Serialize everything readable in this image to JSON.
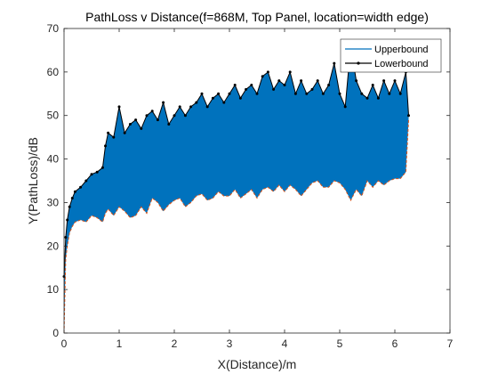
{
  "chart_data": {
    "type": "area",
    "title": "PathLoss v Distance(f=868M, Top Panel, location=width edge)",
    "xlabel": "X(Distance)/m",
    "ylabel": "Y(PathLoss)/dB",
    "xlim": [
      0,
      7
    ],
    "ylim": [
      0,
      70
    ],
    "xticks": [
      0,
      1,
      2,
      3,
      4,
      5,
      6,
      7
    ],
    "yticks": [
      0,
      10,
      20,
      30,
      40,
      50,
      60,
      70
    ],
    "grid": false,
    "legend_position": "top-right",
    "series": [
      {
        "name": "Upperbound",
        "color": "#0072BD",
        "x": [
          0.0,
          0.03,
          0.06,
          0.1,
          0.15,
          0.2,
          0.3,
          0.4,
          0.5,
          0.6,
          0.7,
          0.75,
          0.8,
          0.9,
          1.0,
          1.1,
          1.2,
          1.3,
          1.4,
          1.5,
          1.6,
          1.7,
          1.8,
          1.9,
          2.0,
          2.1,
          2.2,
          2.3,
          2.4,
          2.5,
          2.6,
          2.7,
          2.8,
          2.9,
          3.0,
          3.1,
          3.2,
          3.3,
          3.4,
          3.5,
          3.6,
          3.7,
          3.8,
          3.9,
          4.0,
          4.1,
          4.2,
          4.3,
          4.4,
          4.5,
          4.6,
          4.7,
          4.8,
          4.9,
          5.0,
          5.1,
          5.2,
          5.3,
          5.4,
          5.5,
          5.6,
          5.7,
          5.8,
          5.9,
          6.0,
          6.1,
          6.2,
          6.25
        ],
        "values": [
          13,
          22,
          26,
          29,
          31,
          32.5,
          33.5,
          35,
          36.5,
          37,
          38,
          43,
          46,
          45,
          52,
          46,
          48,
          49,
          47,
          50,
          51,
          49,
          53,
          48,
          50,
          52,
          50,
          52,
          53,
          55,
          52,
          54,
          55,
          53,
          55,
          57,
          54,
          56,
          57,
          55,
          59,
          60,
          56,
          58,
          57,
          60,
          55,
          58,
          55,
          56,
          58,
          55,
          57,
          62,
          55,
          52,
          66,
          58,
          55,
          54,
          57,
          54,
          58,
          55,
          58,
          55,
          60,
          50
        ]
      },
      {
        "name": "Lowerbound",
        "color": "#000000",
        "x": [
          0.0,
          0.03,
          0.06,
          0.1,
          0.15,
          0.2,
          0.3,
          0.4,
          0.5,
          0.6,
          0.7,
          0.75,
          0.8,
          0.9,
          1.0,
          1.1,
          1.2,
          1.3,
          1.4,
          1.5,
          1.6,
          1.7,
          1.8,
          1.9,
          2.0,
          2.1,
          2.2,
          2.3,
          2.4,
          2.5,
          2.6,
          2.7,
          2.8,
          2.9,
          3.0,
          3.1,
          3.2,
          3.3,
          3.4,
          3.5,
          3.6,
          3.7,
          3.8,
          3.9,
          4.0,
          4.1,
          4.2,
          4.3,
          4.4,
          4.5,
          4.6,
          4.7,
          4.8,
          4.9,
          5.0,
          5.1,
          5.2,
          5.3,
          5.4,
          5.5,
          5.6,
          5.7,
          5.8,
          5.9,
          6.0,
          6.1,
          6.2,
          6.25
        ],
        "values": [
          0,
          17,
          20,
          23,
          24.5,
          25.5,
          26,
          25.5,
          27,
          26.5,
          25.5,
          27.5,
          28.5,
          27,
          29,
          28,
          26.5,
          27,
          29,
          27.5,
          31,
          30,
          28,
          29.5,
          30.5,
          31,
          29,
          30,
          31.5,
          32,
          30.5,
          31,
          32.5,
          31.5,
          31.5,
          33,
          31,
          32,
          33,
          31,
          33,
          33.5,
          32.5,
          34,
          32.5,
          34,
          33,
          31.5,
          33,
          34.5,
          35,
          33.5,
          33.5,
          35,
          34.5,
          33,
          30.5,
          33,
          31.5,
          35,
          33.5,
          35,
          34,
          35,
          35.5,
          35.5,
          37,
          49
        ]
      }
    ]
  }
}
